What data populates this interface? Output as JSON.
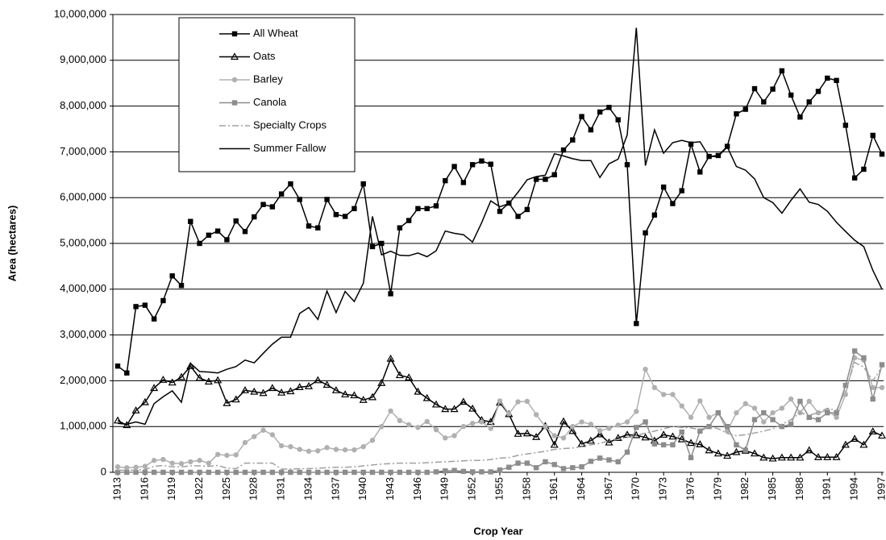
{
  "chart_data": {
    "type": "line",
    "x_label": "Crop Year",
    "y_label": "Area (hectares)",
    "x": [
      1913,
      1914,
      1915,
      1916,
      1917,
      1918,
      1919,
      1920,
      1921,
      1922,
      1923,
      1924,
      1925,
      1926,
      1927,
      1928,
      1929,
      1930,
      1931,
      1932,
      1933,
      1934,
      1935,
      1936,
      1937,
      1938,
      1939,
      1940,
      1941,
      1942,
      1943,
      1944,
      1945,
      1946,
      1947,
      1948,
      1949,
      1950,
      1951,
      1952,
      1953,
      1954,
      1955,
      1956,
      1957,
      1958,
      1959,
      1960,
      1961,
      1962,
      1963,
      1964,
      1965,
      1966,
      1967,
      1968,
      1969,
      1970,
      1971,
      1972,
      1973,
      1974,
      1975,
      1976,
      1977,
      1978,
      1979,
      1980,
      1981,
      1982,
      1983,
      1984,
      1985,
      1986,
      1987,
      1988,
      1989,
      1990,
      1991,
      1992,
      1993,
      1994,
      1995,
      1996,
      1997
    ],
    "xlim": [
      1913,
      1997
    ],
    "xticks": [
      1913,
      1916,
      1919,
      1922,
      1925,
      1928,
      1931,
      1934,
      1937,
      1940,
      1943,
      1946,
      1949,
      1952,
      1955,
      1958,
      1961,
      1964,
      1967,
      1970,
      1973,
      1976,
      1979,
      1982,
      1985,
      1988,
      1991,
      1994,
      1997
    ],
    "ylim": [
      0,
      10000000
    ],
    "yticks": [
      0,
      {
        "value": 1000000,
        "label": "1,000,000"
      },
      {
        "value": 2000000,
        "label": "2,000,000"
      },
      {
        "value": 3000000,
        "label": "3,000,000"
      },
      {
        "value": 4000000,
        "label": "4,000,000"
      },
      {
        "value": 5000000,
        "label": "5,000,000"
      },
      {
        "value": 6000000,
        "label": "6,000,000"
      },
      {
        "value": 7000000,
        "label": "7,000,000"
      },
      {
        "value": 8000000,
        "label": "8,000,000"
      },
      {
        "value": 9000000,
        "label": "9,000,000"
      },
      {
        "value": 10000000,
        "label": "10,000,000"
      }
    ],
    "grid": true,
    "legend": "top-left",
    "series": [
      {
        "name": "All Wheat",
        "color": "#000000",
        "marker": "square",
        "dash": "solid",
        "values": [
          2320000,
          2170000,
          3620000,
          3650000,
          3350000,
          3750000,
          4290000,
          4080000,
          5480000,
          5000000,
          5180000,
          5270000,
          5080000,
          5490000,
          5260000,
          5580000,
          5850000,
          5800000,
          6080000,
          6300000,
          5960000,
          5380000,
          5340000,
          5960000,
          5630000,
          5590000,
          5760000,
          6300000,
          4930000,
          5000000,
          3900000,
          5340000,
          5500000,
          5760000,
          5760000,
          5820000,
          6370000,
          6680000,
          6330000,
          6720000,
          6800000,
          6730000,
          5700000,
          5880000,
          5590000,
          5740000,
          6400000,
          6400000,
          6500000,
          7040000,
          7260000,
          7770000,
          7480000,
          7870000,
          7970000,
          7700000,
          6720000,
          3250000,
          5230000,
          5620000,
          6230000,
          5870000,
          6150000,
          7170000,
          6560000,
          6900000,
          6920000,
          7120000,
          7830000,
          7930000,
          8380000,
          8090000,
          8370000,
          8770000,
          8240000,
          7760000,
          8090000,
          8320000,
          8610000,
          8560000,
          7580000,
          6430000,
          6620000,
          7360000,
          6950000
        ]
      },
      {
        "name": "Oats",
        "color": "#000000",
        "marker": "triangle",
        "dash": "solid",
        "values": [
          1130000,
          1030000,
          1350000,
          1530000,
          1840000,
          2020000,
          1960000,
          2080000,
          2320000,
          2060000,
          1980000,
          2010000,
          1510000,
          1590000,
          1790000,
          1760000,
          1730000,
          1840000,
          1740000,
          1770000,
          1860000,
          1880000,
          2010000,
          1910000,
          1790000,
          1700000,
          1680000,
          1580000,
          1640000,
          1950000,
          2480000,
          2120000,
          2070000,
          1760000,
          1620000,
          1480000,
          1380000,
          1380000,
          1540000,
          1390000,
          1140000,
          1100000,
          1520000,
          1270000,
          840000,
          850000,
          770000,
          1010000,
          600000,
          1110000,
          900000,
          620000,
          690000,
          830000,
          650000,
          750000,
          820000,
          810000,
          760000,
          690000,
          820000,
          780000,
          720000,
          640000,
          610000,
          480000,
          410000,
          360000,
          440000,
          470000,
          410000,
          320000,
          300000,
          320000,
          320000,
          320000,
          480000,
          330000,
          330000,
          330000,
          600000,
          730000,
          600000,
          890000,
          800000
        ]
      },
      {
        "name": "Barley",
        "color": "#b0b0b0",
        "marker": "circle",
        "dash": "solid",
        "values": [
          120000,
          100000,
          110000,
          130000,
          260000,
          280000,
          200000,
          190000,
          230000,
          260000,
          200000,
          390000,
          370000,
          380000,
          650000,
          780000,
          920000,
          820000,
          580000,
          560000,
          500000,
          460000,
          470000,
          540000,
          500000,
          490000,
          490000,
          560000,
          700000,
          1000000,
          1340000,
          1130000,
          1040000,
          980000,
          1110000,
          930000,
          750000,
          800000,
          1000000,
          1070000,
          1100000,
          960000,
          1560000,
          1280000,
          1540000,
          1550000,
          1260000,
          1000000,
          800000,
          750000,
          1000000,
          1100000,
          1050000,
          910000,
          960000,
          1030000,
          1100000,
          1330000,
          2250000,
          1850000,
          1700000,
          1700000,
          1450000,
          1200000,
          1560000,
          1200000,
          1300000,
          900000,
          1300000,
          1500000,
          1400000,
          1100000,
          1300000,
          1400000,
          1600000,
          1300000,
          1550000,
          1300000,
          1350000,
          1200000,
          1700000,
          2500000,
          2450000,
          1850000,
          1850000
        ]
      },
      {
        "name": "Canola",
        "color": "#8c8c8c",
        "marker": "square",
        "dash": "solid",
        "values": [
          0,
          0,
          0,
          0,
          0,
          0,
          0,
          0,
          0,
          0,
          0,
          0,
          0,
          0,
          0,
          0,
          0,
          0,
          0,
          0,
          0,
          0,
          0,
          0,
          0,
          0,
          0,
          0,
          0,
          0,
          0,
          0,
          0,
          0,
          0,
          10000,
          30000,
          40000,
          20000,
          10000,
          10000,
          10000,
          50000,
          110000,
          200000,
          200000,
          100000,
          230000,
          170000,
          80000,
          100000,
          120000,
          240000,
          310000,
          270000,
          230000,
          440000,
          980000,
          1100000,
          620000,
          600000,
          600000,
          880000,
          320000,
          900000,
          1000000,
          1300000,
          1000000,
          600000,
          480000,
          1150000,
          1300000,
          1150000,
          1000000,
          1050000,
          1550000,
          1200000,
          1150000,
          1300000,
          1300000,
          1900000,
          2650000,
          2500000,
          1600000,
          2350000
        ]
      },
      {
        "name": "Specialty Crops",
        "color": "#a0a0a0",
        "marker": "none",
        "dash": "dashdot",
        "values": [
          50000,
          40000,
          50000,
          60000,
          130000,
          150000,
          120000,
          120000,
          140000,
          140000,
          130000,
          150000,
          90000,
          80000,
          200000,
          200000,
          200000,
          200000,
          70000,
          70000,
          80000,
          80000,
          90000,
          100000,
          110000,
          110000,
          120000,
          140000,
          160000,
          180000,
          190000,
          200000,
          200000,
          200000,
          210000,
          220000,
          230000,
          240000,
          250000,
          260000,
          260000,
          280000,
          310000,
          320000,
          370000,
          400000,
          430000,
          460000,
          500000,
          520000,
          530000,
          560000,
          600000,
          630000,
          690000,
          720000,
          760000,
          800000,
          860000,
          900000,
          950000,
          1000000,
          980000,
          970000,
          930000,
          1000000,
          950000,
          850000,
          800000,
          820000,
          860000,
          900000,
          950000,
          1050000,
          1150000,
          1300000,
          1250000,
          1300000,
          1400000,
          1350000,
          1800000,
          2400000,
          2300000,
          2000000,
          2300000
        ]
      },
      {
        "name": "Summer Fallow",
        "color": "#000000",
        "marker": "none",
        "dash": "solid",
        "values": [
          1070000,
          1050000,
          1100000,
          1050000,
          1500000,
          1650000,
          1780000,
          1530000,
          2380000,
          2200000,
          2190000,
          2170000,
          2250000,
          2310000,
          2450000,
          2390000,
          2600000,
          2800000,
          2950000,
          2950000,
          3470000,
          3600000,
          3340000,
          3960000,
          3490000,
          3950000,
          3730000,
          4130000,
          5590000,
          4750000,
          4830000,
          4740000,
          4730000,
          4790000,
          4710000,
          4840000,
          5270000,
          5220000,
          5190000,
          5030000,
          5450000,
          5930000,
          5800000,
          5870000,
          6120000,
          6390000,
          6460000,
          6490000,
          6960000,
          6910000,
          6850000,
          6810000,
          6810000,
          6440000,
          6740000,
          6840000,
          7370000,
          9710000,
          6700000,
          7480000,
          6970000,
          7200000,
          7250000,
          7200000,
          7220000,
          6900000,
          6900000,
          7110000,
          6680000,
          6600000,
          6410000,
          6000000,
          5890000,
          5660000,
          5940000,
          6190000,
          5900000,
          5850000,
          5700000,
          5460000,
          5260000,
          5070000,
          4930000,
          4410000,
          4000000
        ]
      }
    ]
  }
}
